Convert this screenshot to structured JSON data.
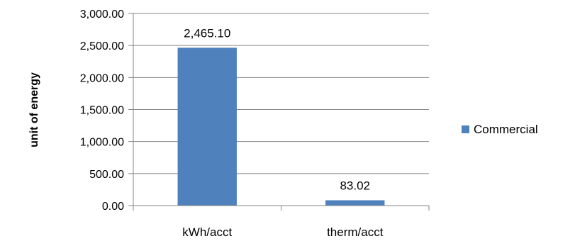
{
  "chart_data": {
    "type": "bar",
    "categories": [
      "kWh/acct",
      "therm/acct"
    ],
    "series": [
      {
        "name": "Commercial",
        "values": [
          2465.1,
          83.02
        ],
        "color": "#4F81BD"
      }
    ],
    "data_labels": [
      "2,465.10",
      "83.02"
    ],
    "ylabel": "unit of energy",
    "xlabel": "",
    "ylim": [
      0,
      3000
    ],
    "yticks": [
      0,
      500,
      1000,
      1500,
      2000,
      2500,
      3000
    ],
    "ytick_labels": [
      "0.00",
      "500.00",
      "1,000.00",
      "1,500.00",
      "2,000.00",
      "2,500.00",
      "3,000.00"
    ],
    "grid": true,
    "legend_position": "right",
    "gridline_color": "#868686"
  }
}
